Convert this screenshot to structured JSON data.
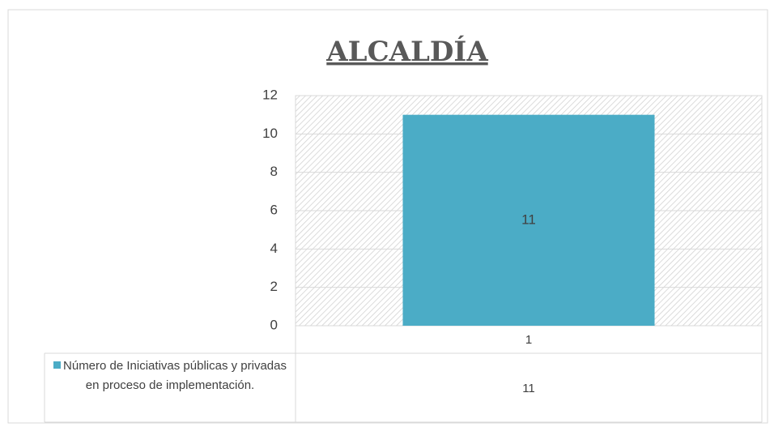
{
  "chart_data": {
    "type": "bar",
    "title": "ALCALDÍA",
    "categories": [
      "1"
    ],
    "series": [
      {
        "name": "Número de Iniciativas públicas y privadas en proceso de implementación.",
        "color": "#4bacc6",
        "values": [
          11
        ]
      }
    ],
    "ylim": [
      0,
      12
    ],
    "yticks": [
      0,
      2,
      4,
      6,
      8,
      10,
      12
    ],
    "grid": true,
    "data_labels": true,
    "data_table": true
  }
}
